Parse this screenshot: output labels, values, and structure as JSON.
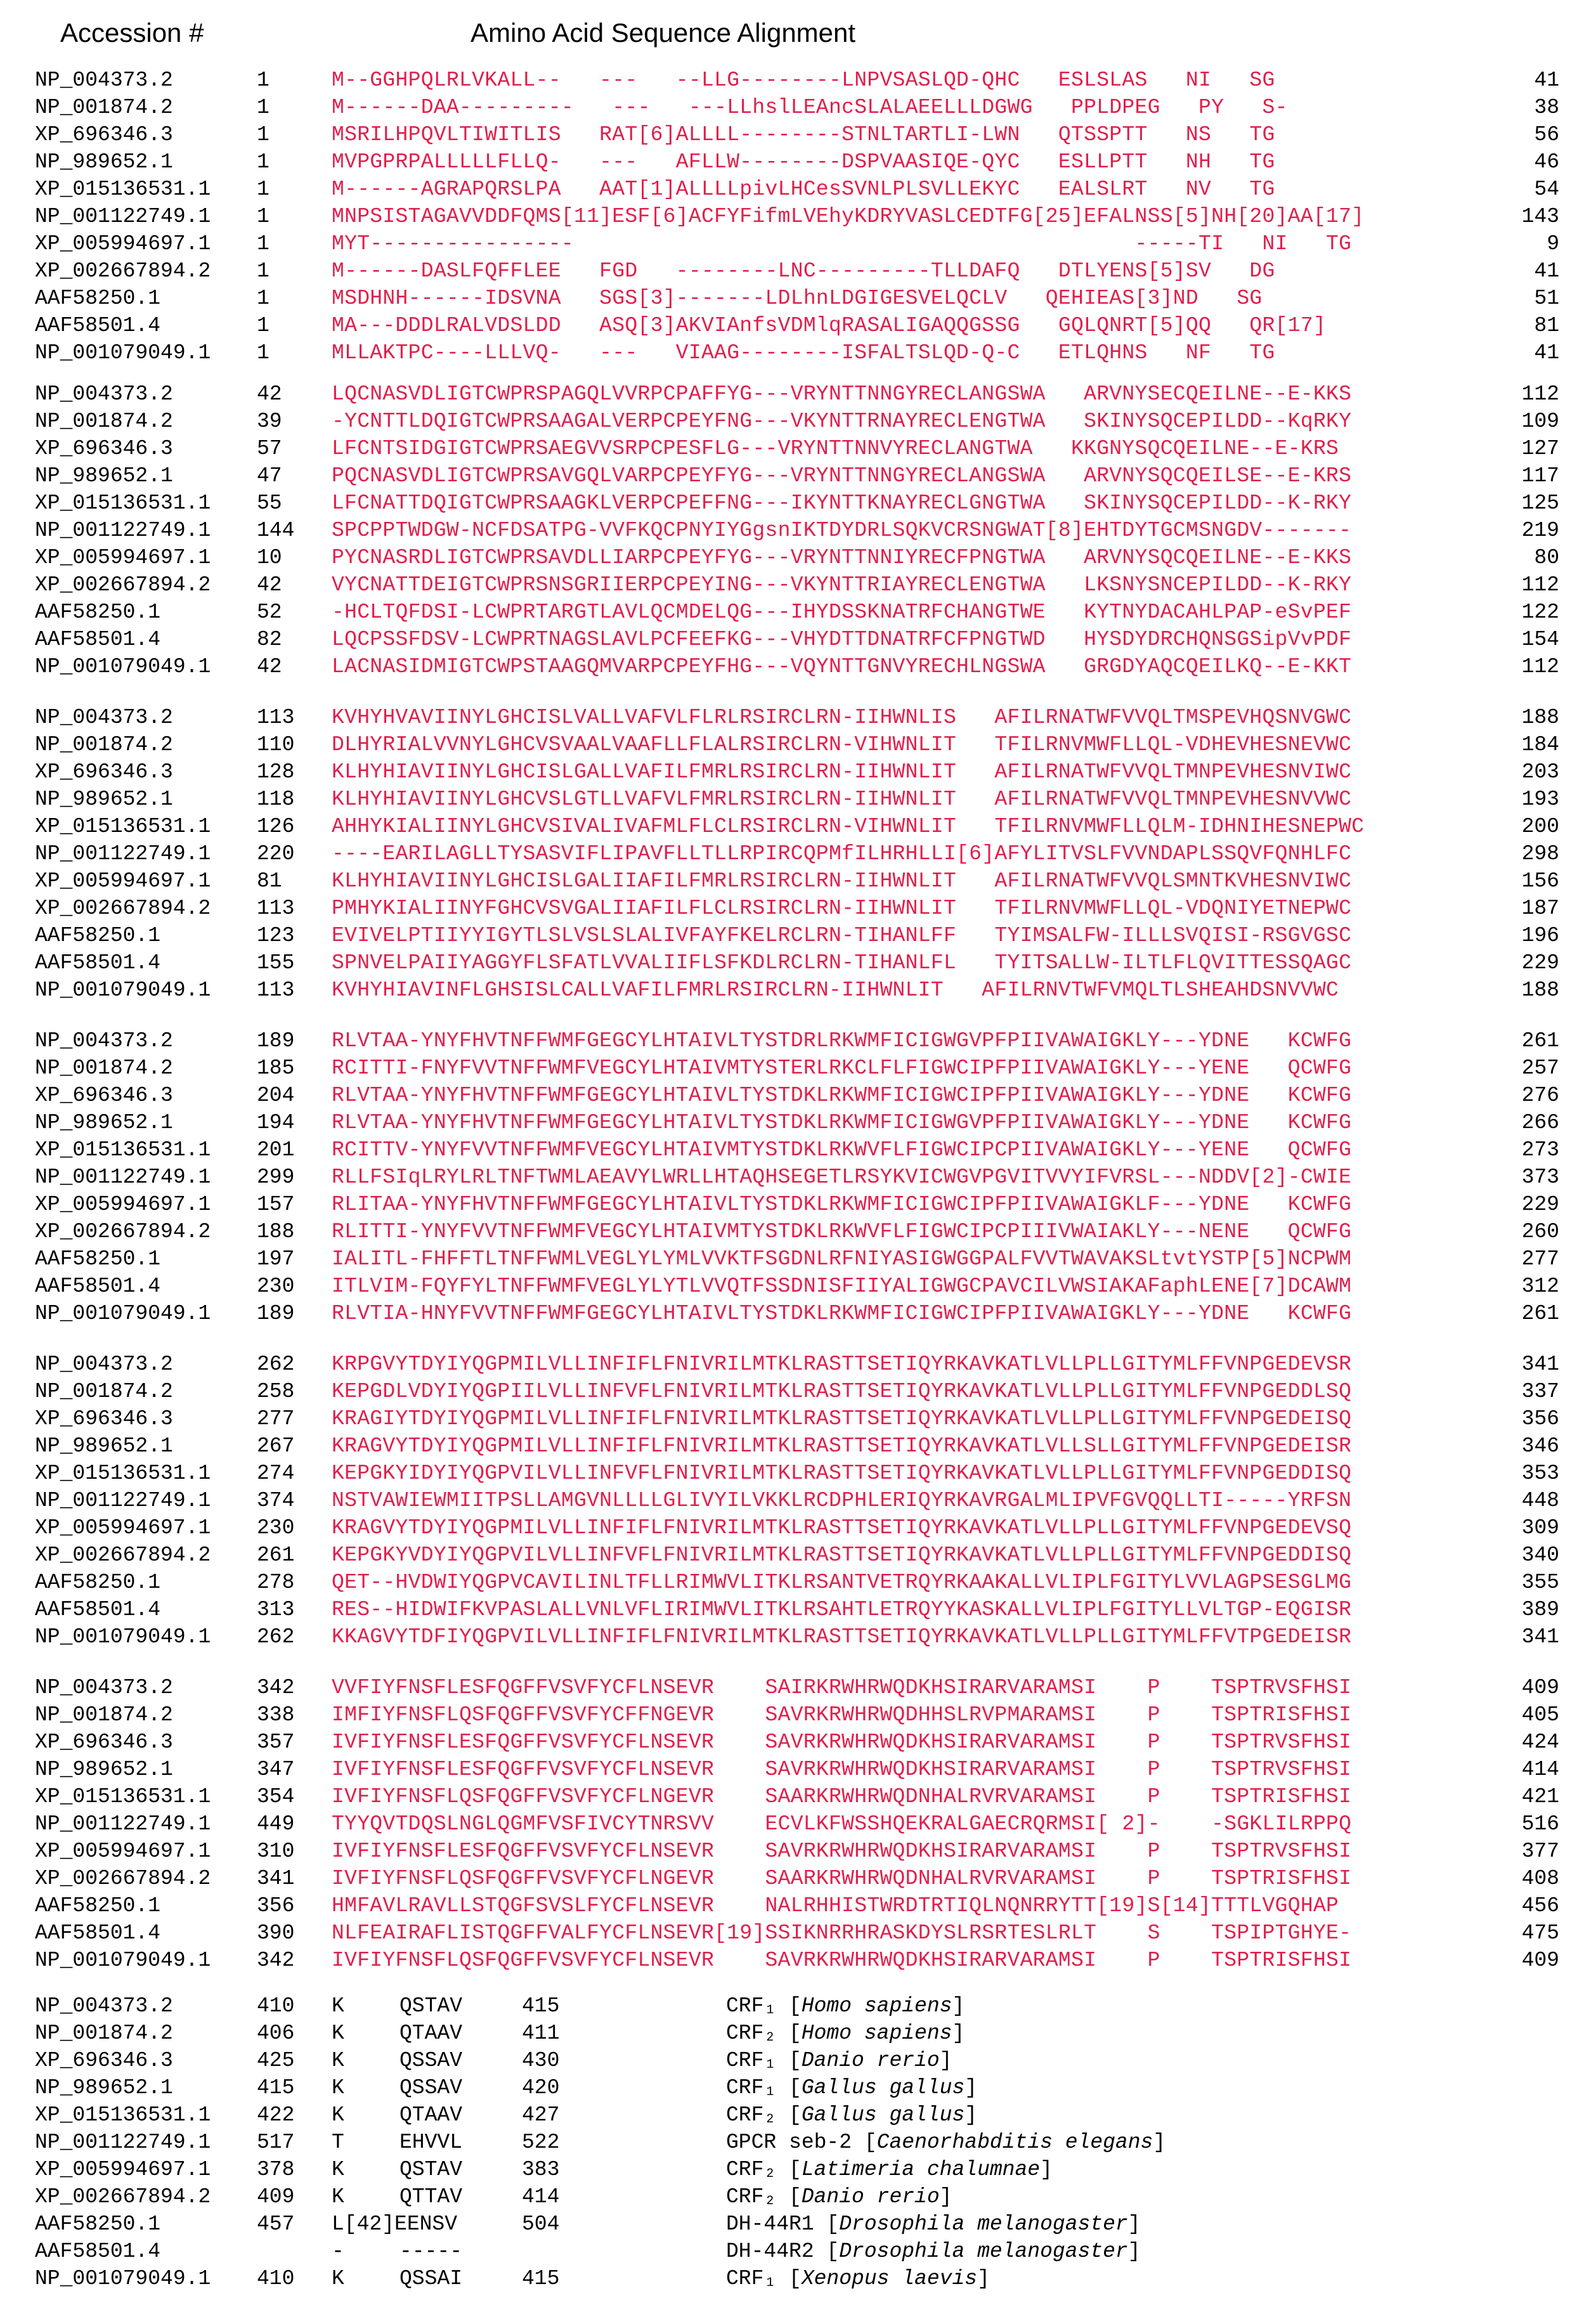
{
  "header": {
    "accession_label": "Accession #",
    "title": "Amino Acid Sequence Alignment"
  },
  "colors": {
    "conserved": "#e01f4b",
    "similar": "#1f2fd1",
    "unaligned": "#777777"
  },
  "blocks": [
    {
      "rows": [
        {
          "acc": "NP_004373.2",
          "start": "1",
          "seq": "M--GGHPQLRLVKALL--   ---   --LLG--------LNPVSASLQD-QHC   ESLSLAS   NI   SG",
          "end": "41"
        },
        {
          "acc": "NP_001874.2",
          "start": "1",
          "seq": "M------DAA---------   ---   ---LLhslLEAncSLALAEELLLDGWG   PPLDPEG   PY   S-",
          "end": "38"
        },
        {
          "acc": "XP_696346.3",
          "start": "1",
          "seq": "MSRILHPQVLTIWITLIS   RAT[6]ALLLL--------STNLTARTLI-LWN   QTSSPTT   NS   TG",
          "end": "56"
        },
        {
          "acc": "NP_989652.1",
          "start": "1",
          "seq": "MVPGPRPALLLLLFLLQ-   ---   AFLLW--------DSPVAASIQE-QYC   ESLLPTT   NH   TG",
          "end": "46"
        },
        {
          "acc": "XP_015136531.1",
          "start": "1",
          "seq": "M------AGRAPQRSLPA   AAT[1]ALLLLpivLHCesSVNLPLSVLLEKYC   EALSLRT   NV   TG",
          "end": "54"
        },
        {
          "acc": "NP_001122749.1",
          "start": "1",
          "seq": "MNPSISTAGAVVDDFQMS[11]ESF[6]ACFYFifmLVEhyKDRYVASLCEDTFG[25]EFALNSS[5]NH[20]AA[17]",
          "end": "143"
        },
        {
          "acc": "XP_005994697.1",
          "start": "1",
          "seq": "MYT----------------                                            -----TI   NI   TG",
          "end": "9"
        },
        {
          "acc": "XP_002667894.2",
          "start": "1",
          "seq": "M------DASLFQFFLEE   FGD   --------LNC---------TLLDAFQ   DTLYENS[5]SV   DG",
          "end": "41"
        },
        {
          "acc": "AAF58250.1",
          "start": "1",
          "seq": "MSDHNH------IDSVNA   SGS[3]-------LDLhnLDGIGESVELQCLV   QEHIEAS[3]ND   SG",
          "end": "51"
        },
        {
          "acc": "AAF58501.4",
          "start": "1",
          "seq": "MA---DDDLRALVDSLDD   ASQ[3]AKVIAnfsVDMlqRASALIGAQQGSSG   GQLQNRT[5]QQ   QR[17]",
          "end": "81"
        },
        {
          "acc": "NP_001079049.1",
          "start": "1",
          "seq": "MLLAKTPC----LLLVQ-   ---   VIAAG--------ISFALTSLQD-Q-C   ETLQHNS   NF   TG",
          "end": "41"
        }
      ]
    },
    {
      "rows": [
        {
          "acc": "NP_004373.2",
          "start": "42",
          "seq": "LQCNASVDLIGTCWPRSPAGQLVVRPCPAFFYG---VRYNTTNNGYRECLANGSWA   ARVNYSECQEILNE--E-KKS",
          "end": "112"
        },
        {
          "acc": "NP_001874.2",
          "start": "39",
          "seq": "-YCNTTLDQIGTCWPRSAAGALVERPCPEYFNG---VKYNTTRNAYRECLENGTWA   SKINYSQCEPILDD--KqRKY",
          "end": "109"
        },
        {
          "acc": "XP_696346.3",
          "start": "57",
          "seq": "LFCNTSIDGIGTCWPRSAEGVVSRPCPESFLG---VRYNTTNNVYRECLANGTWA   KKGNYSQCQEILNE--E-KRS",
          "end": "127"
        },
        {
          "acc": "NP_989652.1",
          "start": "47",
          "seq": "PQCNASVDLIGTCWPRSAVGQLVARPCPEYFYG---VRYNTTNNGYRECLANGSWA   ARVNYSQCQEILSE--E-KRS",
          "end": "117"
        },
        {
          "acc": "XP_015136531.1",
          "start": "55",
          "seq": "LFCNATTDQIGTCWPRSAAGKLVERPCPEFFNG---IKYNTTKNAYRECLGNGTWA   SKINYSQCEPILDD--K-RKY",
          "end": "125"
        },
        {
          "acc": "NP_001122749.1",
          "start": "144",
          "seq": "SPCPPTWDGW-NCFDSATPG-VVFKQCPNYIYGgsnIKTDYDRLSQKVCRSNGWAT[8]EHTDYTGCMSNGDV-------",
          "end": "219"
        },
        {
          "acc": "XP_005994697.1",
          "start": "10",
          "seq": "PYCNASRDLIGTCWPRSAVDLLIARPCPEYFYG---VRYNTTNNIYRECFPNGTWA   ARVNYSQCQEILNE--E-KKS",
          "end": "80"
        },
        {
          "acc": "XP_002667894.2",
          "start": "42",
          "seq": "VYCNATTDEIGTCWPRSNSGRIIERPCPEYING---VKYNTTRIAYRECLENGTWA   LKSNYSNCEPILDD--K-RKY",
          "end": "112"
        },
        {
          "acc": "AAF58250.1",
          "start": "52",
          "seq": "-HCLTQFDSI-LCWPRTARGTLAVLQCMDELQG---IHYDSSKNATRFCHANGTWE   KYTNYDACAHLPAP-eSvPEF",
          "end": "122"
        },
        {
          "acc": "AAF58501.4",
          "start": "82",
          "seq": "LQCPSSFDSV-LCWPRTNAGSLAVLPCFEEFKG---VHYDTTDNATRFCFPNGTWD   HYSDYDRCHQNSGSipVvPDF",
          "end": "154"
        },
        {
          "acc": "NP_001079049.1",
          "start": "42",
          "seq": "LACNASIDMIGTCWPSTAAGQMVARPCPEYFHG---VQYNTTGNVYRECHLNGSWA   GRGDYAQCQEILKQ--E-KKT",
          "end": "112"
        }
      ]
    },
    {
      "rows": [
        {
          "acc": "NP_004373.2",
          "start": "113",
          "seq": "KVHYHVAVIINYLGHCISLVALLVAFVLFLRLRSIRCLRN-IIHWNLIS   AFILRNATWFVVQLTMSPEVHQSNVGWC",
          "end": "188"
        },
        {
          "acc": "NP_001874.2",
          "start": "110",
          "seq": "DLHYRIALVVNYLGHCVSVAALVAAFLLFLALRSIRCLRN-VIHWNLIT   TFILRNVMWFLLQL-VDHEVHESNEVWC",
          "end": "184"
        },
        {
          "acc": "XP_696346.3",
          "start": "128",
          "seq": "KLHYHIAVIINYLGHCISLGALLVAFILFMRLRSIRCLRN-IIHWNLIT   AFILRNATWFVVQLTMNPEVHESNVIWC",
          "end": "203"
        },
        {
          "acc": "NP_989652.1",
          "start": "118",
          "seq": "KLHYHIAVIINYLGHCVSLGTLLVAFVLFMRLRSIRCLRN-IIHWNLIT   AFILRNATWFVVQLTMNPEVHESNVVWC",
          "end": "193"
        },
        {
          "acc": "XP_015136531.1",
          "start": "126",
          "seq": "AHHYKIALIINYLGHCVSIVALIVAFMLFLCLRSIRCLRN-VIHWNLIT   TFILRNVMWFLLQLM-IDHNIHESNEPWC",
          "end": "200"
        },
        {
          "acc": "NP_001122749.1",
          "start": "220",
          "seq": "----EARILAGLLTYSASVIFLIPAVFLLTLLRPIRCQPMfILHRHLLI[6]AFYLITVSLFVVNDAPLSSQVFQNHLFC",
          "end": "298"
        },
        {
          "acc": "XP_005994697.1",
          "start": "81",
          "seq": "KLHYHIAVIINYLGHCISLGALIIAFILFMRLRSIRCLRN-IIHWNLIT   AFILRNATWFVVQLSMNTKVHESNVIWC",
          "end": "156"
        },
        {
          "acc": "XP_002667894.2",
          "start": "113",
          "seq": "PMHYKIALIINYFGHCVSVGALIIAFILFLCLRSIRCLRN-IIHWNLIT   TFILRNVMWFLLQL-VDQNIYETNEPWC",
          "end": "187"
        },
        {
          "acc": "AAF58250.1",
          "start": "123",
          "seq": "EVIVELPTIIYYIGYTLSLVSLSLALIVFAYFKELRCLRN-TIHANLFF   TYIMSALFW-ILLLSVQISI-RSGVGSC",
          "end": "196"
        },
        {
          "acc": "AAF58501.4",
          "start": "155",
          "seq": "SPNVELPAIIYAGGYFLSFATLVVALIIFLSFKDLRCLRN-TIHANLFL   TYITSALLW-ILTLFLQVITTESSQAGC",
          "end": "229"
        },
        {
          "acc": "NP_001079049.1",
          "start": "113",
          "seq": "KVHYHIAVINFLGHSISLCALLVAFILFMRLRSIRCLRN-IIHWNLIT   AFILRNVTWFVMQLTLSHEAHDSNVVWC",
          "end": "188"
        }
      ]
    },
    {
      "rows": [
        {
          "acc": "NP_004373.2",
          "start": "189",
          "seq": "RLVTAA-YNYFHVTNFFWMFGEGCYLHTAIVLTYSTDRLRKWMFICIGWGVPFPIIVAWAIGKLY---YDNE   KCWFG",
          "end": "261"
        },
        {
          "acc": "NP_001874.2",
          "start": "185",
          "seq": "RCITTI-FNYFVVTNFFWMFVEGCYLHTAIVMTYSTERLRKCLFLFIGWCIPFPIIVAWAIGKLY---YENE   QCWFG",
          "end": "257"
        },
        {
          "acc": "XP_696346.3",
          "start": "204",
          "seq": "RLVTAA-YNYFHVTNFFWMFGEGCYLHTAIVLTYSTDKLRKWMFICIGWCIPFPIIVAWAIGKLY---YDNE   KCWFG",
          "end": "276"
        },
        {
          "acc": "NP_989652.1",
          "start": "194",
          "seq": "RLVTAA-YNYFHVTNFFWMFGEGCYLHTAIVLTYSTDKLRKWMFICIGWGVPFPIIVAWAIGKLY---YDNE   KCWFG",
          "end": "266"
        },
        {
          "acc": "XP_015136531.1",
          "start": "201",
          "seq": "RCITTV-YNYFVVTNFFWMFVEGCYLHTAIVMTYSTDKLRKWVFLFIGWCIPCPIIVAWAIGKLY---YENE   QCWFG",
          "end": "273"
        },
        {
          "acc": "NP_001122749.1",
          "start": "299",
          "seq": "RLLFSIqLRYLRLTNFTWMLAEAVYLWRLLHTAQHSEGETLRSYKVICWGVPGVITVVYIFVRSL---NDDV[2]-CWIE",
          "end": "373"
        },
        {
          "acc": "XP_005994697.1",
          "start": "157",
          "seq": "RLITAA-YNYFHVTNFFWMFGEGCYLHTAIVLTYSTDKLRKWMFICIGWCIPFPIIVAWAIGKLF---YDNE   KCWFG",
          "end": "229"
        },
        {
          "acc": "XP_002667894.2",
          "start": "188",
          "seq": "RLITTI-YNYFVVTNFFWMFVEGCYLHTAIVMTYSTDKLRKWVFLFIGWCIPCPIIIVWAIAKLY---NENE   QCWFG",
          "end": "260"
        },
        {
          "acc": "AAF58250.1",
          "start": "197",
          "seq": "IALITL-FHFFTLTNFFWMLVEGLYLYMLVVKTFSGDNLRFNIYASIGWGGPALFVVTWAVAKSLtvtYSTP[5]NCPWM",
          "end": "277"
        },
        {
          "acc": "AAF58501.4",
          "start": "230",
          "seq": "ITLVIM-FQYFYLTNFFWMFVEGLYLYTLVVQTFSSDNISFIIYALIGWGCPAVCILVWSIAKAFaphLENE[7]DCAWM",
          "end": "312"
        },
        {
          "acc": "NP_001079049.1",
          "start": "189",
          "seq": "RLVTIA-HNYFVVTNFFWMFGEGCYLHTAIVLTYSTDKLRKWMFICIGWCIPFPIIVAWAIGKLY---YDNE   KCWFG",
          "end": "261"
        }
      ]
    },
    {
      "rows": [
        {
          "acc": "NP_004373.2",
          "start": "262",
          "seq": "KRPGVYTDYIYQGPMILVLLINFIFLFNIVRILMTKLRASTTSETIQYRKAVKATLVLLPLLGITYMLFFVNPGEDEVSR",
          "end": "341"
        },
        {
          "acc": "NP_001874.2",
          "start": "258",
          "seq": "KEPGDLVDYIYQGPIILVLLINFVFLFNIVRILMTKLRASTTSETIQYRKAVKATLVLLPLLGITYMLFFVNPGEDDLSQ",
          "end": "337"
        },
        {
          "acc": "XP_696346.3",
          "start": "277",
          "seq": "KRAGIYTDYIYQGPMILVLLINFIFLFNIVRILMTKLRASTTSETIQYRKAVKATLVLLPLLGITYMLFFVNPGEDEISQ",
          "end": "356"
        },
        {
          "acc": "NP_989652.1",
          "start": "267",
          "seq": "KRAGVYTDYIYQGPMILVLLINFIFLFNIVRILMTKLRASTTSETIQYRKAVKATLVLLSLLGITYMLFFVNPGEDEISR",
          "end": "346"
        },
        {
          "acc": "XP_015136531.1",
          "start": "274",
          "seq": "KEPGKYIDYIYQGPVILVLLINFVFLFNIVRILMTKLRASTTSETIQYRKAVKATLVLLPLLGITYMLFFVNPGEDDISQ",
          "end": "353"
        },
        {
          "acc": "NP_001122749.1",
          "start": "374",
          "seq": "NSTVAWIEWMIITPSLLAMGVNLLLLGLIVYILVKKLRCDPHLERIQYRKAVRGALMLIPVFGVQQLLTI-----YRFSN",
          "end": "448"
        },
        {
          "acc": "XP_005994697.1",
          "start": "230",
          "seq": "KRAGVYTDYIYQGPMILVLLINFIFLFNIVRILMTKLRASTTSETIQYRKAVKATLVLLPLLGITYMLFFVNPGEDEVSQ",
          "end": "309"
        },
        {
          "acc": "XP_002667894.2",
          "start": "261",
          "seq": "KEPGKYVDYIYQGPVILVLLINFVFLFNIVRILMTKLRASTTSETIQYRKAVKATLVLLPLLGITYMLFFVNPGEDDISQ",
          "end": "340"
        },
        {
          "acc": "AAF58250.1",
          "start": "278",
          "seq": "QET--HVDWIYQGPVCAVILINLTFLLRIMWVLITKLRSANTVETRQYRKAAKALLVLIPLFGITYLVVLAGPSESGLMG",
          "end": "355"
        },
        {
          "acc": "AAF58501.4",
          "start": "313",
          "seq": "RES--HIDWIFKVPASLALLVNLVFLIRIMWVLITKLRSAHTLETRQYYKASKALLVLIPLFGITYLLVLTGP-EQGISR",
          "end": "389"
        },
        {
          "acc": "NP_001079049.1",
          "start": "262",
          "seq": "KKAGVYTDFIYQGPVILVLLINFIFLFNIVRILMTKLRASTTSETIQYRKAVKATLVLLPLLGITYMLFFVTPGEDEISR",
          "end": "341"
        }
      ]
    },
    {
      "rows": [
        {
          "acc": "NP_004373.2",
          "start": "342",
          "seq": "VVFIYFNSFLESFQGFFVSVFYCFLNSEVR    SAIRKRWHRWQDKHSIRARVARAMSI    P    TSPTRVSFHSI",
          "end": "409"
        },
        {
          "acc": "NP_001874.2",
          "start": "338",
          "seq": "IMFIYFNSFLQSFQGFFVSVFYCFFNGEVR    SAVRKRWHRWQDHHSLRVPMARAMSI    P    TSPTRISFHSI",
          "end": "405"
        },
        {
          "acc": "XP_696346.3",
          "start": "357",
          "seq": "IVFIYFNSFLESFQGFFVSVFYCFLNSEVR    SAVRKRWHRWQDKHSIRARVARAMSI    P    TSPTRVSFHSI",
          "end": "424"
        },
        {
          "acc": "NP_989652.1",
          "start": "347",
          "seq": "IVFIYFNSFLESFQGFFVSVFYCFLNSEVR    SAVRKRWHRWQDKHSIRARVARAMSI    P    TSPTRVSFHSI",
          "end": "414"
        },
        {
          "acc": "XP_015136531.1",
          "start": "354",
          "seq": "IVFIYFNSFLQSFQGFFVSVFYCFLNGEVR    SAARKRWHRWQDNHALRVRVARAMSI    P    TSPTRISFHSI",
          "end": "421"
        },
        {
          "acc": "NP_001122749.1",
          "start": "449",
          "seq": "TYYQVTDQSLNGLQGMFVSFIVCYTNRSVV    ECVLKFWSSHQEKRALGAECRQRMSI[ 2]-    -SGKLILRPPQ",
          "end": "516"
        },
        {
          "acc": "XP_005994697.1",
          "start": "310",
          "seq": "IVFIYFNSFLESFQGFFVSVFYCFLNSEVR    SAVRKRWHRWQDKHSIRARVARAMSI    P    TSPTRVSFHSI",
          "end": "377"
        },
        {
          "acc": "XP_002667894.2",
          "start": "341",
          "seq": "IVFIYFNSFLQSFQGFFVSVFYCFLNGEVR    SAARKRWHRWQDNHALRVRVARAMSI    P    TSPTRISFHSI",
          "end": "408"
        },
        {
          "acc": "AAF58250.1",
          "start": "356",
          "seq": "HMFAVLRAVLLSTQGFSVSLFYCFLNSEVR    NALRHHISTWRDTRTIQLNQNRRYTT[19]S[14]TTTLVGQHAP",
          "end": "456"
        },
        {
          "acc": "AAF58501.4",
          "start": "390",
          "seq": "NLFEAIRAFLISTQGFFVALFYCFLNSEVR[19]SSIKNRRHRASKDYSLRSRTESLRLT    S    TSPIPTGHYE-",
          "end": "475"
        },
        {
          "acc": "NP_001079049.1",
          "start": "342",
          "seq": "IVFIYFNSFLQSFQGFFVSVFYCFLNSEVR    SAVRKRWHRWQDKHSIRARVARAMSI    P    TSPTRISFHSI",
          "end": "409"
        }
      ]
    }
  ],
  "final_block": {
    "rows": [
      {
        "acc": "NP_004373.2",
        "start": "410",
        "k": "K",
        "mid": "QSTAV",
        "endpos": "415",
        "label": "CRF₁",
        "species": "Homo sapiens",
        "bracketed": true
      },
      {
        "acc": "NP_001874.2",
        "start": "406",
        "k": "K",
        "mid": "QTAAV",
        "endpos": "411",
        "label": "CRF₂",
        "species": "Homo sapiens",
        "bracketed": true
      },
      {
        "acc": "XP_696346.3",
        "start": "425",
        "k": "K",
        "mid": "QSSAV",
        "endpos": "430",
        "label": "CRF₁",
        "species": "Danio rerio",
        "bracketed": true
      },
      {
        "acc": "NP_989652.1",
        "start": "415",
        "k": "K",
        "mid": "QSSAV",
        "endpos": "420",
        "label": "CRF₁",
        "species": "Gallus gallus",
        "bracketed": true
      },
      {
        "acc": "XP_015136531.1",
        "start": "422",
        "k": "K",
        "mid": "QTAAV",
        "endpos": "427",
        "label": "CRF₂",
        "species": "Gallus gallus",
        "bracketed": true
      },
      {
        "acc": "NP_001122749.1",
        "start": "517",
        "k": "T",
        "mid": "EHVVL",
        "endpos": "522",
        "label": "GPCR seb-2",
        "species": "Caenorhabditis elegans",
        "bracketed": true
      },
      {
        "acc": "XP_005994697.1",
        "start": "378",
        "k": "K",
        "mid": "QSTAV",
        "endpos": "383",
        "label": "CRF₂",
        "species": "Latimeria chalumnae",
        "bracketed": true
      },
      {
        "acc": "XP_002667894.2",
        "start": "409",
        "k": "K",
        "mid": "QTTAV",
        "endpos": "414",
        "label": "CRF₂",
        "species": "Danio rerio",
        "bracketed": true
      },
      {
        "acc": "AAF58250.1",
        "start": "457",
        "k": "L[42]EENSV",
        "mid": "",
        "endpos": "504",
        "label": "DH-44R1",
        "species": "Drosophila melanogaster",
        "bracketed": true
      },
      {
        "acc": "AAF58501.4",
        "start": "",
        "k": "-",
        "mid": "-----",
        "endpos": "",
        "label": "DH-44R2",
        "species": "Drosophila melanogaster",
        "bracketed": true
      },
      {
        "acc": "NP_001079049.1",
        "start": "410",
        "k": "K",
        "mid": "QSSAI",
        "endpos": "415",
        "label": "CRF₁",
        "species": "Xenopus laevis",
        "bracketed": true
      }
    ]
  }
}
